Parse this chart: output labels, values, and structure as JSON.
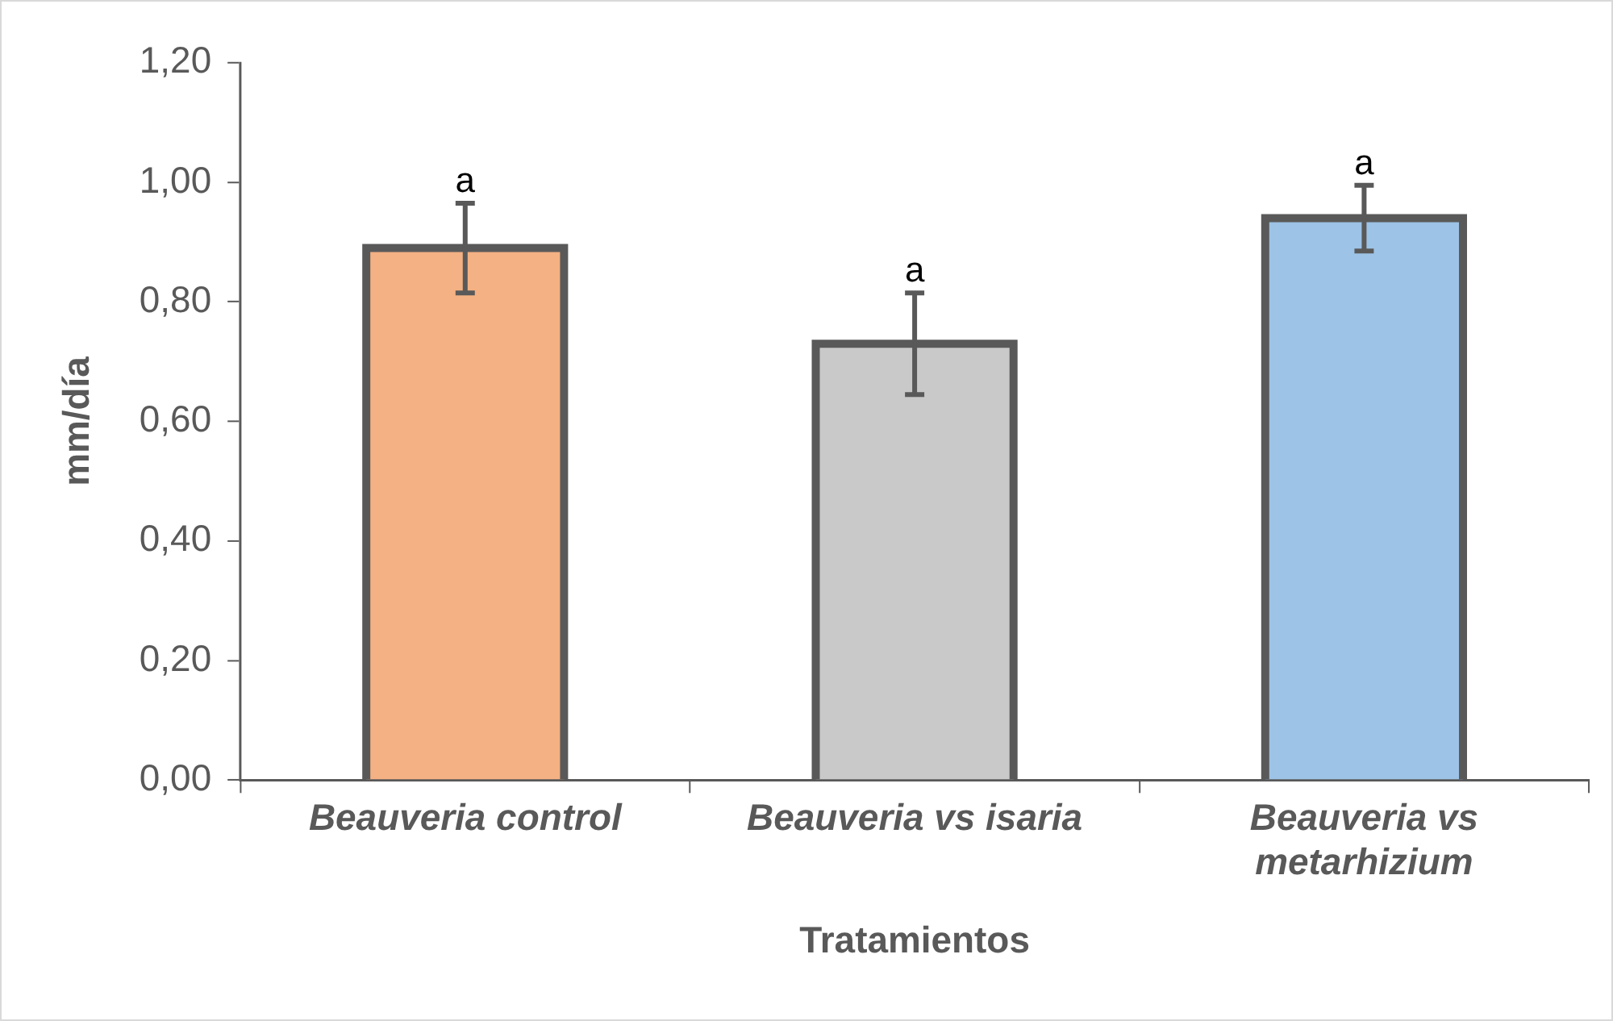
{
  "chart_data": {
    "type": "bar",
    "xlabel": "Tratamientos",
    "ylabel": "mm/día",
    "categories": [
      "Beauveria control",
      "Beauveria vs isaria",
      "Beauveria vs metarhizium"
    ],
    "values": [
      0.89,
      0.73,
      0.94
    ],
    "errors": [
      0.075,
      0.085,
      0.055
    ],
    "colors": [
      "#f4b183",
      "#c9c9c9",
      "#9dc3e6"
    ],
    "ylim": [
      0,
      1.2
    ],
    "yticks": [
      {
        "value": 0,
        "label": "0,00"
      },
      {
        "value": 0.2,
        "label": "0,20"
      },
      {
        "value": 0.4,
        "label": "0,40"
      },
      {
        "value": 0.6,
        "label": "0,60"
      },
      {
        "value": 0.8,
        "label": "0,80"
      },
      {
        "value": 1,
        "label": "1,00"
      },
      {
        "value": 1.2,
        "label": "1,20"
      }
    ],
    "grid": false,
    "legend": false,
    "annotations": [
      {
        "text": "a",
        "x": "Beauveria control",
        "y": 0.965
      },
      {
        "text": "a",
        "x": "Beauveria vs isaria",
        "y": 0.815
      },
      {
        "text": "a",
        "x": "Beauveria vs metarhizium",
        "y": 0.995
      }
    ]
  }
}
